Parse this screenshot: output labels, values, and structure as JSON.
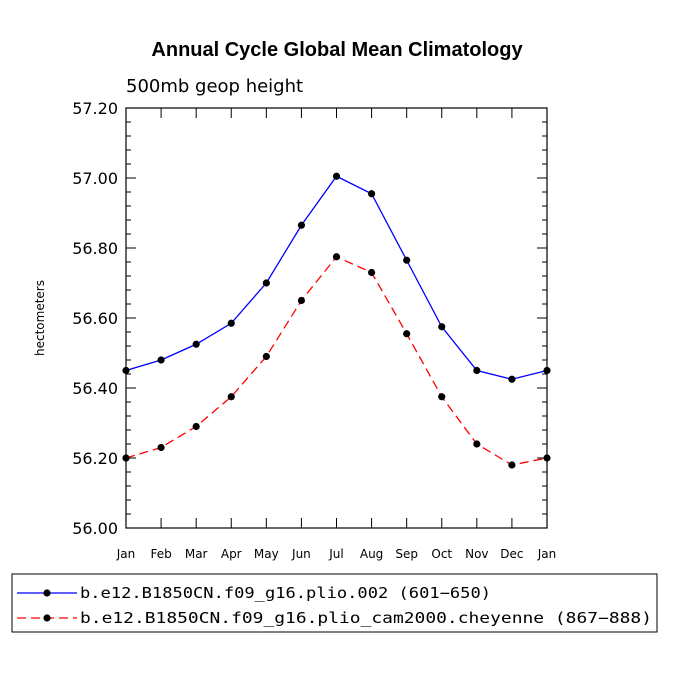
{
  "chart_data": {
    "type": "line",
    "title": "Annual Cycle Global Mean Climatology",
    "subtitle": "500mb geop height",
    "xlabel": "",
    "ylabel": "hectometers",
    "ylim": [
      56.0,
      57.2
    ],
    "yticks": [
      "56.00",
      "56.20",
      "56.40",
      "56.60",
      "56.80",
      "57.00",
      "57.20"
    ],
    "categories": [
      "Jan",
      "Feb",
      "Mar",
      "Apr",
      "May",
      "Jun",
      "Jul",
      "Aug",
      "Sep",
      "Oct",
      "Nov",
      "Dec",
      "Jan"
    ],
    "series": [
      {
        "name": "b.e12.B1850CN.f09_g16.plio.002 (601−650)",
        "color": "#0000ff",
        "dash": "solid",
        "marker": "circle",
        "values": [
          56.45,
          56.48,
          56.525,
          56.585,
          56.7,
          56.865,
          57.005,
          56.955,
          56.765,
          56.575,
          56.45,
          56.425,
          56.45
        ]
      },
      {
        "name": "b.e12.B1850CN.f09_g16.plio_cam2000.cheyenne (867−888)",
        "color": "#ff0000",
        "dash": "dashed",
        "marker": "circle",
        "values": [
          56.2,
          56.23,
          56.29,
          56.375,
          56.49,
          56.65,
          56.775,
          56.73,
          56.555,
          56.375,
          56.24,
          56.18,
          56.2
        ]
      }
    ],
    "legend_position": "bottom"
  }
}
